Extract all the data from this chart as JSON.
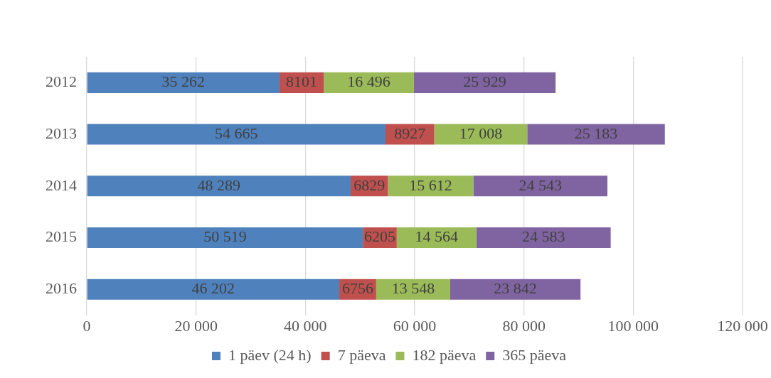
{
  "chart_data": {
    "type": "bar",
    "orientation": "horizontal",
    "stacked": true,
    "categories": [
      "2012",
      "2013",
      "2014",
      "2015",
      "2016"
    ],
    "series": [
      {
        "name": "1 päev (24 h)",
        "color": "#4f81bd",
        "values": [
          35262,
          54665,
          48289,
          50519,
          46202
        ],
        "value_labels": [
          "35 262",
          "54 665",
          "48 289",
          "50 519",
          "46 202"
        ]
      },
      {
        "name": "7 päeva",
        "color": "#c0504d",
        "values": [
          8101,
          8927,
          6829,
          6205,
          6756
        ],
        "value_labels": [
          "8101",
          "8927",
          "6829",
          "6205",
          "6756"
        ]
      },
      {
        "name": "182 päeva",
        "color": "#9bbb59",
        "values": [
          16496,
          17008,
          15612,
          14564,
          13548
        ],
        "value_labels": [
          "16 496",
          "17 008",
          "15 612",
          "14 564",
          "13 548"
        ]
      },
      {
        "name": "365 päeva",
        "color": "#8064a2",
        "values": [
          25929,
          25183,
          24543,
          24583,
          23842
        ],
        "value_labels": [
          "25 929",
          "25 183",
          "24 543",
          "24 583",
          "23 842"
        ]
      }
    ],
    "xlim": [
      0,
      120000
    ],
    "xticks": [
      0,
      {
        "value": 20000,
        "label": "20 000"
      },
      {
        "value": 40000,
        "label": "40 000"
      },
      {
        "value": 60000,
        "label": "60 000"
      },
      {
        "value": 80000,
        "label": "80 000"
      },
      {
        "value": 100000,
        "label": "100 000"
      },
      {
        "value": 120000,
        "label": "120 000"
      }
    ],
    "grid": "x",
    "legend": "bottom"
  }
}
